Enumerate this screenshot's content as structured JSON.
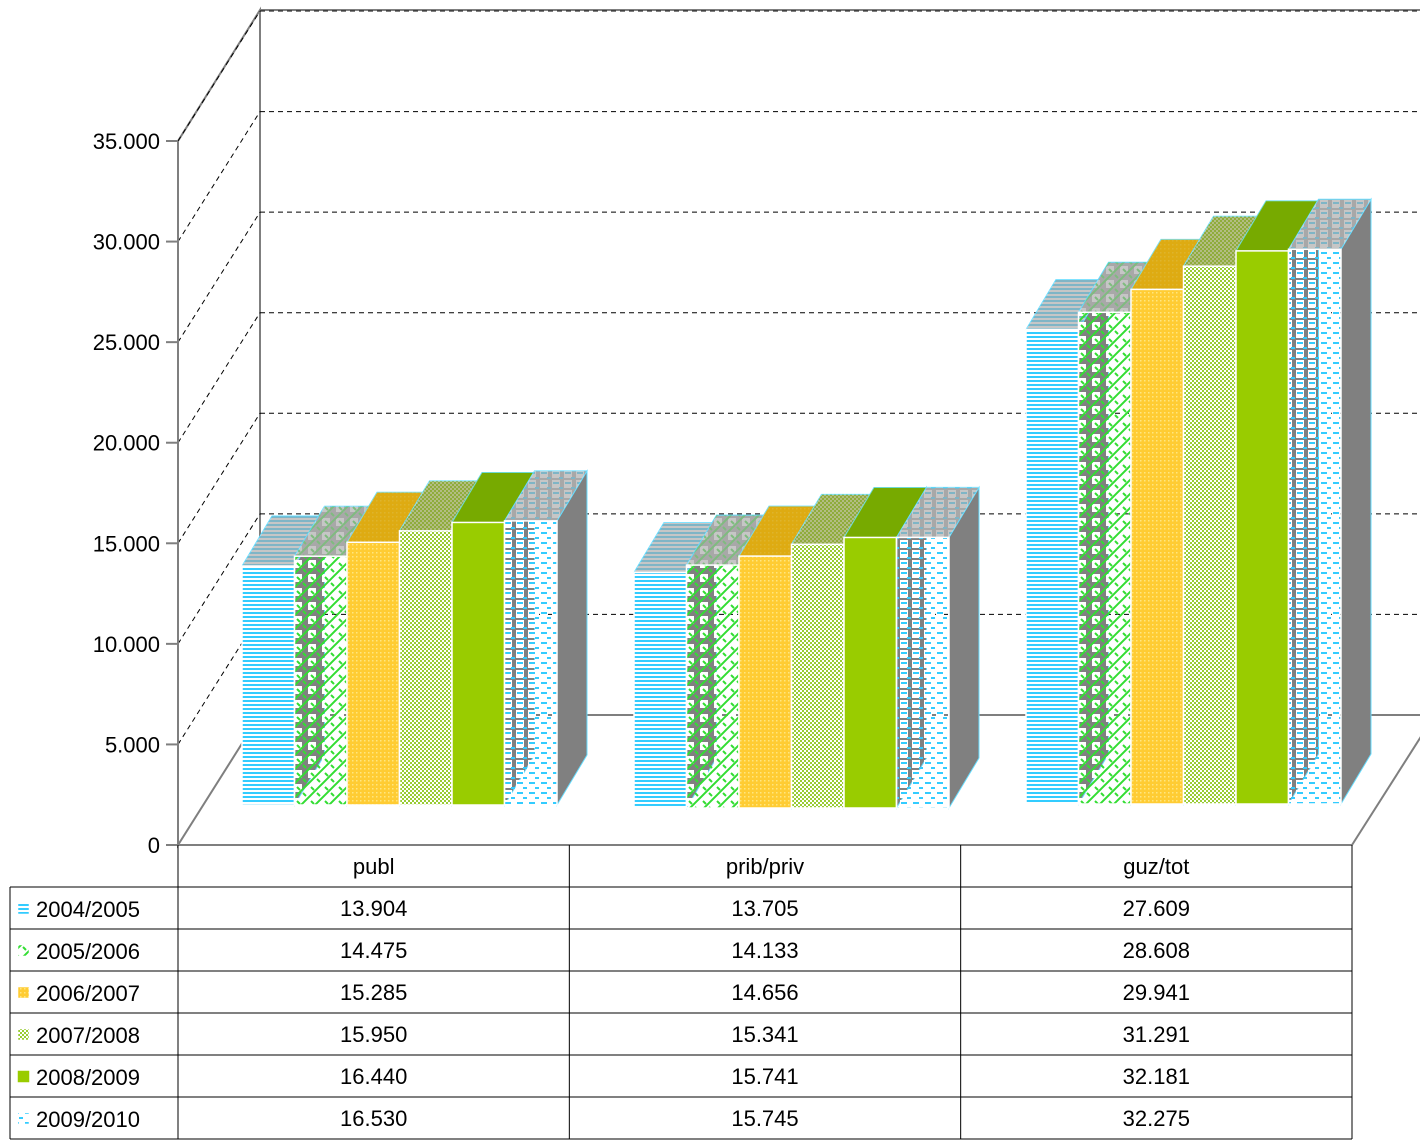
{
  "chart_data": {
    "type": "bar",
    "title": "",
    "xlabel": "",
    "ylabel": "",
    "categories": [
      "publ",
      "prib/priv",
      "guz/tot"
    ],
    "series": [
      {
        "name": "2004/2005",
        "values": [
          13.904,
          13.705,
          27.609
        ],
        "color": "#33ccff",
        "pattern": "hlines"
      },
      {
        "name": "2005/2006",
        "values": [
          14.475,
          14.133,
          28.608
        ],
        "color": "#33dd33",
        "pattern": "lattice"
      },
      {
        "name": "2006/2007",
        "values": [
          15.285,
          14.656,
          29.941
        ],
        "color": "#ffcc33",
        "pattern": "dots"
      },
      {
        "name": "2007/2008",
        "values": [
          15.95,
          15.341,
          31.291
        ],
        "color": "#99cc33",
        "pattern": "checker"
      },
      {
        "name": "2008/2009",
        "values": [
          16.44,
          15.741,
          32.181
        ],
        "color": "#99cc00",
        "pattern": "solid"
      },
      {
        "name": "2009/2010",
        "values": [
          16.53,
          15.745,
          32.275
        ],
        "color": "#33ccff",
        "pattern": "dashes"
      }
    ],
    "value_labels": [
      [
        "13.904",
        "13.705",
        "27.609"
      ],
      [
        "14.475",
        "14.133",
        "28.608"
      ],
      [
        "15.285",
        "14.656",
        "29.941"
      ],
      [
        "15.950",
        "15.341",
        "31.291"
      ],
      [
        "16.440",
        "15.741",
        "32.181"
      ],
      [
        "16.530",
        "15.745",
        "32.275"
      ]
    ],
    "y_ticks": [
      0,
      5,
      10,
      15,
      20,
      25,
      30,
      35
    ],
    "y_tick_labels": [
      "0",
      "5.000",
      "10.000",
      "15.000",
      "20.000",
      "25.000",
      "30.000",
      "35.000"
    ],
    "ylim": [
      0,
      35
    ],
    "grid": true,
    "legend": "data-table-below"
  }
}
